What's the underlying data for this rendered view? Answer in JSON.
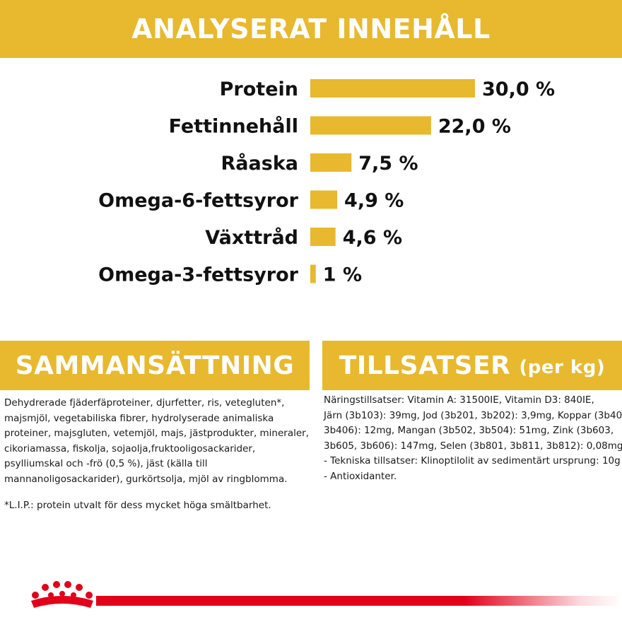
{
  "colors": {
    "accent": "#e8b92e",
    "bar": "#e8b92e",
    "brand_red": "#e2001a",
    "text": "#111111"
  },
  "header": {
    "title": "ANALYSERAT INNEHÅLL"
  },
  "chart_data": {
    "type": "bar",
    "orientation": "horizontal",
    "title": "ANALYSERAT INNEHÅLL",
    "categories": [
      "Protein",
      "Fettinnehåll",
      "Råaska",
      "Omega-6-fettsyror",
      "Växttråd",
      "Omega-3-fettsyror"
    ],
    "values": [
      30.0,
      22.0,
      7.5,
      4.9,
      4.6,
      1
    ],
    "value_labels": [
      "30,0 %",
      "22,0 %",
      "7,5 %",
      "4,9 %",
      "4,6 %",
      "1 %"
    ],
    "unit": "%",
    "xlim": [
      0,
      30
    ],
    "grid": false,
    "legend": "none"
  },
  "composition": {
    "title": "SAMMANSÄTTNING",
    "lines": [
      "Dehydrerade fjäderfäproteiner, djurfetter, ris, vetegluten*,",
      "majsmjöl, vegetabiliska fibrer, hydrolyserade animaliska",
      "proteiner, majsgluten, vetemjöl, majs, jästprodukter, mineraler,",
      "cikoriamassa, fiskolja, sojaolja,fruktooligosackarider,",
      "psylliumskal och -frö (0,5 %), jäst (källa till",
      "mannanoligosackarider), gurkörtsolja, mjöl av ringblomma."
    ],
    "note": "*L.I.P.: protein utvalt för dess mycket höga smältbarhet."
  },
  "additives": {
    "title": "TILLSATSER",
    "title_suffix": "(per kg)",
    "lines": [
      "Näringstillsatser: Vitamin A: 31500IE, Vitamin D3: 840IE,",
      "Järn (3b103): 39mg, Jod (3b201, 3b202): 3,9mg, Koppar (3b405,",
      "3b406): 12mg, Mangan (3b502, 3b504): 51mg, Zink (3b603,",
      "3b605, 3b606): 147mg, Selen (3b801, 3b811, 3b812): 0,08mg",
      "- Tekniska tillsatser: Klinoptilolit av sedimentärt ursprung: 10g",
      "- Antioxidanter."
    ]
  },
  "logo": {
    "icon": "crown-icon"
  }
}
